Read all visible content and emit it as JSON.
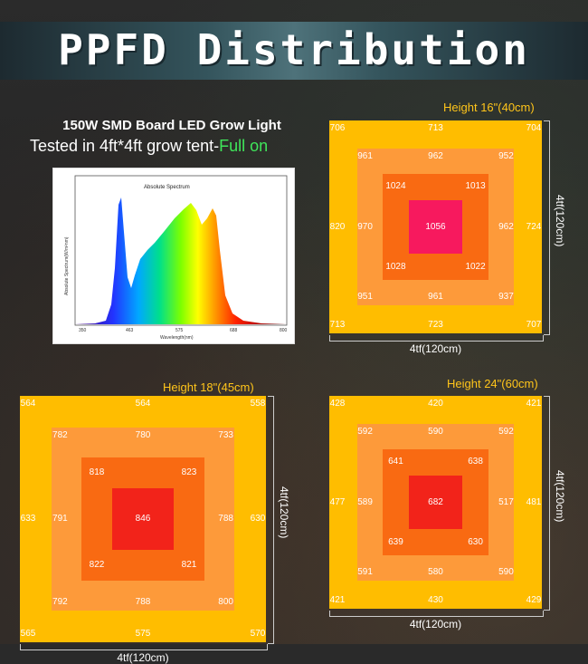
{
  "banner": {
    "title": "PPFD Distribution"
  },
  "product": {
    "name": "150W SMD Board LED Grow Light",
    "tested_prefix": "Tested in 4ft*4ft grow tent-",
    "tested_highlight": "Full on"
  },
  "spectrum": {
    "title": "Absolute Spectrum",
    "xlabel": "Wavelength(nm)",
    "ylabel": "Absolute Spectrum(W/m²nm)",
    "x_ticks": [
      "350",
      "463",
      "575",
      "688",
      "800"
    ]
  },
  "colors": {
    "outer": "#ffbd00",
    "ring2": "#fd9a3a",
    "ring3": "#f96a12",
    "center_a": "#f7195e",
    "center_b": "#f2231a",
    "title_text": "#ffc51a",
    "highlight_text": "#3fe65a"
  },
  "chart_data": [
    {
      "type": "heatmap",
      "title": "Height 16\"(40cm)",
      "xlabel": "4tf(120cm)",
      "ylabel": "4tf(120cm)",
      "rings": [
        {
          "level": "outer",
          "values": {
            "tl": "706",
            "tm": "713",
            "tr": "704",
            "ml": "820",
            "mr": "724",
            "bl": "713",
            "bm": "723",
            "br": "707"
          }
        },
        {
          "level": "ring2",
          "values": {
            "tl": "961",
            "tm": "962",
            "tr": "952",
            "ml": "970",
            "mr": "962",
            "bl": "951",
            "bm": "961",
            "br": "937"
          }
        },
        {
          "level": "ring3",
          "values": {
            "tl": "1024",
            "tr": "1013",
            "bl": "1028",
            "br": "1022"
          }
        }
      ],
      "center": "1056"
    },
    {
      "type": "heatmap",
      "title": "Height 18\"(45cm)",
      "xlabel": "4tf(120cm)",
      "ylabel": "4tf(120cm)",
      "rings": [
        {
          "level": "outer",
          "values": {
            "tl": "564",
            "tm": "564",
            "tr": "558",
            "ml": "633",
            "mr": "630",
            "bl": "565",
            "bm": "575",
            "br": "570"
          }
        },
        {
          "level": "ring2",
          "values": {
            "tl": "782",
            "tm": "780",
            "tr": "733",
            "ml": "791",
            "mr": "788",
            "bl": "792",
            "bm": "788",
            "br": "800"
          }
        },
        {
          "level": "ring3",
          "values": {
            "tl": "818",
            "tr": "823",
            "bl": "822",
            "br": "821"
          }
        }
      ],
      "center": "846"
    },
    {
      "type": "heatmap",
      "title": "Height 24\"(60cm)",
      "xlabel": "4tf(120cm)",
      "ylabel": "4tf(120cm)",
      "rings": [
        {
          "level": "outer",
          "values": {
            "tl": "428",
            "tm": "420",
            "tr": "421",
            "ml": "477",
            "mr": "481",
            "bl": "421",
            "bm": "430",
            "br": "429"
          }
        },
        {
          "level": "ring2",
          "values": {
            "tl": "592",
            "tm": "590",
            "tr": "592",
            "ml": "589",
            "mr": "517",
            "bl": "591",
            "bm": "580",
            "br": "590"
          }
        },
        {
          "level": "ring3",
          "values": {
            "tl": "641",
            "tr": "638",
            "bl": "639",
            "br": "630"
          }
        }
      ],
      "center": "682"
    }
  ]
}
